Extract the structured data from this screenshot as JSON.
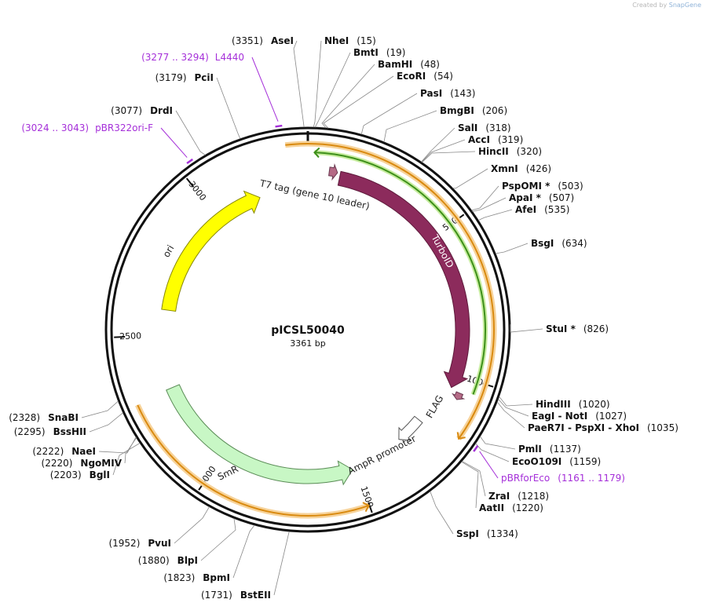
{
  "credit": {
    "prefix": "Created by",
    "brand": "SnapGene"
  },
  "map": {
    "name": "pICSL50040",
    "size_label": "3361 bp",
    "length": 3361
  },
  "ticks": [
    {
      "pos": 500,
      "label": "500"
    },
    {
      "pos": 1000,
      "label": "1000"
    },
    {
      "pos": 1500,
      "label": "1500"
    },
    {
      "pos": 2000,
      "label": "2000"
    },
    {
      "pos": 2500,
      "label": "2500"
    },
    {
      "pos": 3000,
      "label": "3000"
    }
  ],
  "features": [
    {
      "id": "t7tag",
      "label": "T7 tag (gene 10 leader)",
      "start": 72,
      "end": 100,
      "color": "#b56a86",
      "type": "small-arrow",
      "radius": 0
    },
    {
      "id": "turboid",
      "label": "TurboID",
      "start": 110,
      "end": 1045,
      "color": "#8c2b5c",
      "type": "arrow"
    },
    {
      "id": "flag",
      "label": "FLAG",
      "start": 1052,
      "end": 1075,
      "color": "#b56a86",
      "type": "small-arrow"
    },
    {
      "id": "ampr-promoter",
      "label": "AmpR promoter",
      "start": 1205,
      "end": 1310,
      "color": "#ffffff",
      "type": "outline-arrow"
    },
    {
      "id": "smr",
      "label": "SmR",
      "start": 1515,
      "end": 2305,
      "color": "#c8f7c5",
      "type": "arrow-rev"
    },
    {
      "id": "ori",
      "label": "ori",
      "start": 2595,
      "end": 3175,
      "color": "#ffff00",
      "type": "arrow"
    }
  ],
  "orfs": [
    {
      "id": "orf1",
      "start": 3296,
      "end": 1175,
      "color": "#f0a020"
    },
    {
      "id": "orf2",
      "start": 1502,
      "end": 2298,
      "color": "#f0a020"
    }
  ],
  "sites": [
    {
      "name": "AseI",
      "pos": "3351"
    },
    {
      "name": "NheI",
      "pos": "15"
    },
    {
      "name": "BmtI",
      "pos": "19"
    },
    {
      "name": "BamHI",
      "pos": "48"
    },
    {
      "name": "EcoRI",
      "pos": "54"
    },
    {
      "name": "PasI",
      "pos": "143"
    },
    {
      "name": "BmgBI",
      "pos": "206"
    },
    {
      "name": "SalI",
      "pos": "318"
    },
    {
      "name": "AccI",
      "pos": "319"
    },
    {
      "name": "HincII",
      "pos": "320"
    },
    {
      "name": "XmnI",
      "pos": "426"
    },
    {
      "name": "PspOMI *",
      "pos": "503"
    },
    {
      "name": "ApaI *",
      "pos": "507"
    },
    {
      "name": "AfeI",
      "pos": "535"
    },
    {
      "name": "BsgI",
      "pos": "634"
    },
    {
      "name": "StuI *",
      "pos": "826"
    },
    {
      "name": "HindIII",
      "pos": "1020"
    },
    {
      "name": "EagI - NotI",
      "pos": "1027"
    },
    {
      "name": "PaeR7I - PspXI - XhoI",
      "pos": "1035"
    },
    {
      "name": "PmlI",
      "pos": "1137"
    },
    {
      "name": "EcoO109I",
      "pos": "1159"
    },
    {
      "name": "ZraI",
      "pos": "1218"
    },
    {
      "name": "AatII",
      "pos": "1220"
    },
    {
      "name": "SspI",
      "pos": "1334"
    },
    {
      "name": "BstEII",
      "pos": "1731"
    },
    {
      "name": "BpmI",
      "pos": "1823"
    },
    {
      "name": "BlpI",
      "pos": "1880"
    },
    {
      "name": "PvuI",
      "pos": "1952"
    },
    {
      "name": "BglI",
      "pos": "2203"
    },
    {
      "name": "NgoMIV",
      "pos": "2220"
    },
    {
      "name": "NaeI",
      "pos": "2222"
    },
    {
      "name": "BssHII",
      "pos": "2295"
    },
    {
      "name": "SnaBI",
      "pos": "2328"
    },
    {
      "name": "DrdI",
      "pos": "3077"
    },
    {
      "name": "PciI",
      "pos": "3179"
    }
  ],
  "primers": [
    {
      "name": "L4440",
      "range": "(3277 .. 3294)",
      "mid": 3285
    },
    {
      "name": "pBR322ori-F",
      "range": "(3024 .. 3043)",
      "mid": 3034
    },
    {
      "name": "pBRforEco",
      "range": "(1161 .. 1179)",
      "mid": 1170
    }
  ]
}
